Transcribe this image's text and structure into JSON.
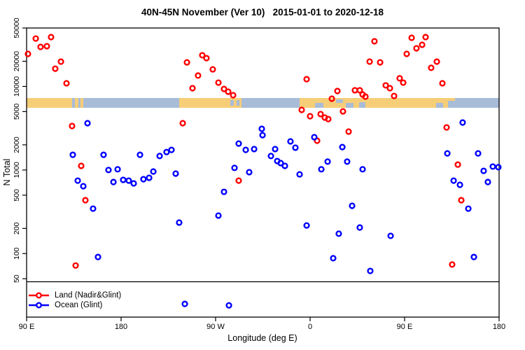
{
  "title": "40N-45N November (Ver 10)   2015-01-01 to 2020-12-18",
  "chart_data": {
    "type": "scatter",
    "title": "40N-45N November (Ver 10)   2015-01-01 to 2020-12-18",
    "xlabel": "Longitude (deg E)",
    "ylabel": "N Total",
    "y_scale": "log",
    "ylim": [
      17,
      50000
    ],
    "x_span_deg": 450,
    "grid": false,
    "legend_position": "bottom-left",
    "x_ticks": [
      {
        "deg": 0,
        "label": "90 E"
      },
      {
        "deg": 90,
        "label": "180"
      },
      {
        "deg": 180,
        "label": "90 W"
      },
      {
        "deg": 270,
        "label": "0"
      },
      {
        "deg": 360,
        "label": "90 E"
      },
      {
        "deg": 450,
        "label": "180"
      }
    ],
    "y_ticks": [
      50000,
      20000,
      10000,
      5000,
      2000,
      1000,
      500,
      200,
      100,
      50
    ],
    "threshold_line_value": 46,
    "map_strip": {
      "band": "40N-45N",
      "land_color": "#f6ce78",
      "ocean_color": "#a8bcd8",
      "land_segments_deg": [
        [
          0,
          43.3
        ],
        [
          46,
          49.3
        ],
        [
          51.3,
          54
        ],
        [
          145.3,
          204.7
        ],
        [
          260,
          408
        ]
      ],
      "ocean_patches_deg": [
        [
          194,
          197.3,
          3,
          8
        ],
        [
          200,
          202.7,
          3,
          8
        ],
        [
          274.7,
          282.7,
          7,
          7
        ],
        [
          294.7,
          301.3,
          2,
          5
        ],
        [
          304,
          311.3,
          7,
          7
        ],
        [
          316.7,
          322.7,
          6,
          8
        ],
        [
          390,
          396.7,
          7,
          7
        ],
        [
          401.3,
          408,
          4,
          10
        ]
      ]
    },
    "series": [
      {
        "name": "Land (Nadir&Glint)",
        "color": "#ff0000",
        "points": [
          [
            8.7,
            37400
          ],
          [
            23.3,
            38900
          ],
          [
            13.3,
            29700
          ],
          [
            19.3,
            30300
          ],
          [
            1.3,
            24500
          ],
          [
            32.7,
            19800
          ],
          [
            27.3,
            16300
          ],
          [
            38,
            10900
          ],
          [
            43.3,
            3360
          ],
          [
            52,
            1120
          ],
          [
            152.7,
            19400
          ],
          [
            167.3,
            23600
          ],
          [
            171.3,
            21800
          ],
          [
            177.3,
            16000
          ],
          [
            163.3,
            13500
          ],
          [
            182.7,
            11100
          ],
          [
            188,
            9330
          ],
          [
            192,
            8650
          ],
          [
            196.7,
            7850
          ],
          [
            158,
            9520
          ],
          [
            148.7,
            3630
          ],
          [
            331.3,
            34700
          ],
          [
            366.7,
            38200
          ],
          [
            380,
            38900
          ],
          [
            371.3,
            28600
          ],
          [
            376.7,
            31500
          ],
          [
            362,
            24500
          ],
          [
            326.7,
            19800
          ],
          [
            336.7,
            19400
          ],
          [
            390.7,
            19800
          ],
          [
            385.3,
            16700
          ],
          [
            355.3,
            12500
          ],
          [
            358.7,
            11100
          ],
          [
            396,
            10900
          ],
          [
            266.7,
            12200
          ],
          [
            296,
            8810
          ],
          [
            290.7,
            7130
          ],
          [
            312.7,
            8990
          ],
          [
            317.3,
            8990
          ],
          [
            320,
            8000
          ],
          [
            322.7,
            7550
          ],
          [
            342,
            10300
          ],
          [
            346,
            9520
          ],
          [
            350,
            7690
          ],
          [
            262,
            5240
          ],
          [
            270,
            4400
          ],
          [
            280,
            4670
          ],
          [
            284,
            4240
          ],
          [
            287.3,
            4070
          ],
          [
            301.3,
            5030
          ],
          [
            306.7,
            2880
          ],
          [
            276.7,
            2240
          ],
          [
            400,
            3230
          ],
          [
            410.7,
            1160
          ],
          [
            56,
            435
          ],
          [
            46.7,
            72
          ],
          [
            202,
            746
          ],
          [
            414,
            435
          ],
          [
            405.3,
            74
          ]
        ]
      },
      {
        "name": "Ocean (Glint)",
        "color": "#0000ff",
        "points": [
          [
            58,
            3630
          ],
          [
            44,
            1520
          ],
          [
            73.3,
            1520
          ],
          [
            108,
            1520
          ],
          [
            126.7,
            1470
          ],
          [
            133.3,
            1640
          ],
          [
            138,
            1740
          ],
          [
            78,
            1000
          ],
          [
            86.7,
            1020
          ],
          [
            120.7,
            959
          ],
          [
            142,
            906
          ],
          [
            224,
            3110
          ],
          [
            224.7,
            2610
          ],
          [
            202,
            2070
          ],
          [
            208.7,
            1740
          ],
          [
            216.7,
            1780
          ],
          [
            198,
            1060
          ],
          [
            212,
            942
          ],
          [
            48.7,
            746
          ],
          [
            54,
            640
          ],
          [
            63.3,
            345
          ],
          [
            82.7,
            718
          ],
          [
            92,
            762
          ],
          [
            97.3,
            746
          ],
          [
            102,
            692
          ],
          [
            111.3,
            776
          ],
          [
            116.7,
            807
          ],
          [
            145.3,
            235
          ],
          [
            188,
            548
          ],
          [
            182.7,
            285
          ],
          [
            68,
            91
          ],
          [
            150.7,
            25
          ],
          [
            192.7,
            24
          ],
          [
            236.7,
            1780
          ],
          [
            232.7,
            1470
          ],
          [
            238.7,
            1280
          ],
          [
            242,
            1210
          ],
          [
            246,
            1120
          ],
          [
            251.3,
            2200
          ],
          [
            256,
            1850
          ],
          [
            274,
            2470
          ],
          [
            280.7,
            1020
          ],
          [
            286.7,
            1260
          ],
          [
            300.7,
            1880
          ],
          [
            305.3,
            1260
          ],
          [
            320,
            1020
          ],
          [
            260,
            887
          ],
          [
            415.3,
            3700
          ],
          [
            400.7,
            1580
          ],
          [
            430,
            1580
          ],
          [
            435.3,
            977
          ],
          [
            444,
            1100
          ],
          [
            449.3,
            1080
          ],
          [
            310,
            373
          ],
          [
            266.7,
            217
          ],
          [
            297.3,
            173
          ],
          [
            317.3,
            205
          ],
          [
            346.7,
            163
          ],
          [
            292,
            88
          ],
          [
            327.3,
            62
          ],
          [
            406.7,
            746
          ],
          [
            412.7,
            665
          ],
          [
            420.7,
            345
          ],
          [
            439.3,
            718
          ],
          [
            426,
            91
          ]
        ]
      }
    ]
  },
  "legend": {
    "items": [
      {
        "label": "Land (Nadir&Glint)",
        "color": "#ff0000"
      },
      {
        "label": "Ocean (Glint)",
        "color": "#0000ff"
      }
    ]
  }
}
